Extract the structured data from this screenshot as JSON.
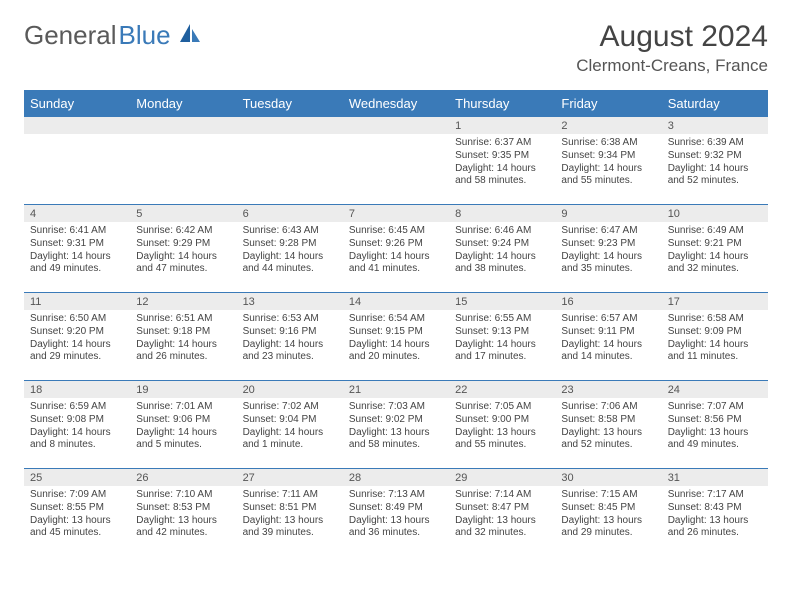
{
  "logo": {
    "text1": "General",
    "text2": "Blue"
  },
  "title": "August 2024",
  "location": "Clermont-Creans, France",
  "colors": {
    "header_bg": "#3a7ab8",
    "header_text": "#ffffff",
    "daynum_bg": "#ececec",
    "border": "#3a7ab8",
    "text": "#444444",
    "logo_gray": "#5a5a5a",
    "logo_blue": "#3a7ab8"
  },
  "weekdays": [
    "Sunday",
    "Monday",
    "Tuesday",
    "Wednesday",
    "Thursday",
    "Friday",
    "Saturday"
  ],
  "weeks": [
    [
      {
        "n": "",
        "lines": []
      },
      {
        "n": "",
        "lines": []
      },
      {
        "n": "",
        "lines": []
      },
      {
        "n": "",
        "lines": []
      },
      {
        "n": "1",
        "lines": [
          "Sunrise: 6:37 AM",
          "Sunset: 9:35 PM",
          "Daylight: 14 hours and 58 minutes."
        ]
      },
      {
        "n": "2",
        "lines": [
          "Sunrise: 6:38 AM",
          "Sunset: 9:34 PM",
          "Daylight: 14 hours and 55 minutes."
        ]
      },
      {
        "n": "3",
        "lines": [
          "Sunrise: 6:39 AM",
          "Sunset: 9:32 PM",
          "Daylight: 14 hours and 52 minutes."
        ]
      }
    ],
    [
      {
        "n": "4",
        "lines": [
          "Sunrise: 6:41 AM",
          "Sunset: 9:31 PM",
          "Daylight: 14 hours and 49 minutes."
        ]
      },
      {
        "n": "5",
        "lines": [
          "Sunrise: 6:42 AM",
          "Sunset: 9:29 PM",
          "Daylight: 14 hours and 47 minutes."
        ]
      },
      {
        "n": "6",
        "lines": [
          "Sunrise: 6:43 AM",
          "Sunset: 9:28 PM",
          "Daylight: 14 hours and 44 minutes."
        ]
      },
      {
        "n": "7",
        "lines": [
          "Sunrise: 6:45 AM",
          "Sunset: 9:26 PM",
          "Daylight: 14 hours and 41 minutes."
        ]
      },
      {
        "n": "8",
        "lines": [
          "Sunrise: 6:46 AM",
          "Sunset: 9:24 PM",
          "Daylight: 14 hours and 38 minutes."
        ]
      },
      {
        "n": "9",
        "lines": [
          "Sunrise: 6:47 AM",
          "Sunset: 9:23 PM",
          "Daylight: 14 hours and 35 minutes."
        ]
      },
      {
        "n": "10",
        "lines": [
          "Sunrise: 6:49 AM",
          "Sunset: 9:21 PM",
          "Daylight: 14 hours and 32 minutes."
        ]
      }
    ],
    [
      {
        "n": "11",
        "lines": [
          "Sunrise: 6:50 AM",
          "Sunset: 9:20 PM",
          "Daylight: 14 hours and 29 minutes."
        ]
      },
      {
        "n": "12",
        "lines": [
          "Sunrise: 6:51 AM",
          "Sunset: 9:18 PM",
          "Daylight: 14 hours and 26 minutes."
        ]
      },
      {
        "n": "13",
        "lines": [
          "Sunrise: 6:53 AM",
          "Sunset: 9:16 PM",
          "Daylight: 14 hours and 23 minutes."
        ]
      },
      {
        "n": "14",
        "lines": [
          "Sunrise: 6:54 AM",
          "Sunset: 9:15 PM",
          "Daylight: 14 hours and 20 minutes."
        ]
      },
      {
        "n": "15",
        "lines": [
          "Sunrise: 6:55 AM",
          "Sunset: 9:13 PM",
          "Daylight: 14 hours and 17 minutes."
        ]
      },
      {
        "n": "16",
        "lines": [
          "Sunrise: 6:57 AM",
          "Sunset: 9:11 PM",
          "Daylight: 14 hours and 14 minutes."
        ]
      },
      {
        "n": "17",
        "lines": [
          "Sunrise: 6:58 AM",
          "Sunset: 9:09 PM",
          "Daylight: 14 hours and 11 minutes."
        ]
      }
    ],
    [
      {
        "n": "18",
        "lines": [
          "Sunrise: 6:59 AM",
          "Sunset: 9:08 PM",
          "Daylight: 14 hours and 8 minutes."
        ]
      },
      {
        "n": "19",
        "lines": [
          "Sunrise: 7:01 AM",
          "Sunset: 9:06 PM",
          "Daylight: 14 hours and 5 minutes."
        ]
      },
      {
        "n": "20",
        "lines": [
          "Sunrise: 7:02 AM",
          "Sunset: 9:04 PM",
          "Daylight: 14 hours and 1 minute."
        ]
      },
      {
        "n": "21",
        "lines": [
          "Sunrise: 7:03 AM",
          "Sunset: 9:02 PM",
          "Daylight: 13 hours and 58 minutes."
        ]
      },
      {
        "n": "22",
        "lines": [
          "Sunrise: 7:05 AM",
          "Sunset: 9:00 PM",
          "Daylight: 13 hours and 55 minutes."
        ]
      },
      {
        "n": "23",
        "lines": [
          "Sunrise: 7:06 AM",
          "Sunset: 8:58 PM",
          "Daylight: 13 hours and 52 minutes."
        ]
      },
      {
        "n": "24",
        "lines": [
          "Sunrise: 7:07 AM",
          "Sunset: 8:56 PM",
          "Daylight: 13 hours and 49 minutes."
        ]
      }
    ],
    [
      {
        "n": "25",
        "lines": [
          "Sunrise: 7:09 AM",
          "Sunset: 8:55 PM",
          "Daylight: 13 hours and 45 minutes."
        ]
      },
      {
        "n": "26",
        "lines": [
          "Sunrise: 7:10 AM",
          "Sunset: 8:53 PM",
          "Daylight: 13 hours and 42 minutes."
        ]
      },
      {
        "n": "27",
        "lines": [
          "Sunrise: 7:11 AM",
          "Sunset: 8:51 PM",
          "Daylight: 13 hours and 39 minutes."
        ]
      },
      {
        "n": "28",
        "lines": [
          "Sunrise: 7:13 AM",
          "Sunset: 8:49 PM",
          "Daylight: 13 hours and 36 minutes."
        ]
      },
      {
        "n": "29",
        "lines": [
          "Sunrise: 7:14 AM",
          "Sunset: 8:47 PM",
          "Daylight: 13 hours and 32 minutes."
        ]
      },
      {
        "n": "30",
        "lines": [
          "Sunrise: 7:15 AM",
          "Sunset: 8:45 PM",
          "Daylight: 13 hours and 29 minutes."
        ]
      },
      {
        "n": "31",
        "lines": [
          "Sunrise: 7:17 AM",
          "Sunset: 8:43 PM",
          "Daylight: 13 hours and 26 minutes."
        ]
      }
    ]
  ]
}
